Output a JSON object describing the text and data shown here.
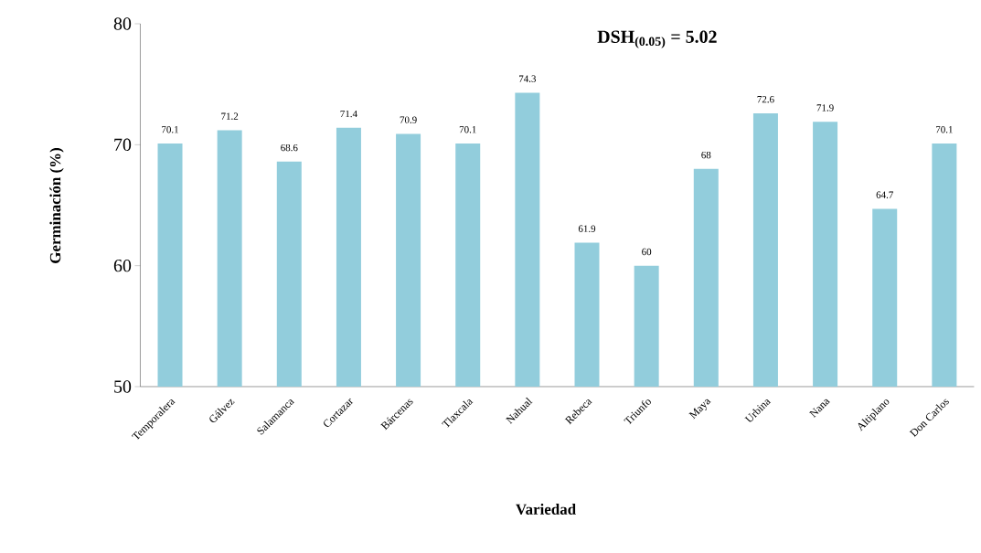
{
  "chart_data": {
    "type": "bar",
    "xlabel": "Variedad",
    "ylabel": "Germinación (%)",
    "categories": [
      "Temporalera",
      "Gálvez",
      "Salamanca",
      "Cortazar",
      "Bárcenas",
      "Tlaxcala",
      "Nahual",
      "Rebeca",
      "Triunfo",
      "Maya",
      "Urbina",
      "Nana",
      "Altiplano",
      "Don Carlos"
    ],
    "values": [
      70.1,
      71.2,
      68.6,
      71.4,
      70.9,
      70.1,
      74.3,
      61.9,
      60,
      68,
      72.6,
      71.9,
      64.7,
      70.1
    ],
    "value_labels": [
      "70.1",
      "71.2",
      "68.6",
      "71.4",
      "70.9",
      "70.1",
      "74.3",
      "61.9",
      "60",
      "68",
      "72.6",
      "71.9",
      "64.7",
      "70.1"
    ],
    "color": "#92cddc",
    "ylim": [
      50,
      80
    ],
    "yticks": [
      50,
      60,
      70,
      80
    ],
    "grid": false,
    "annotations": [
      "DSH$_{(0.05)}$ = 5.02"
    ]
  }
}
